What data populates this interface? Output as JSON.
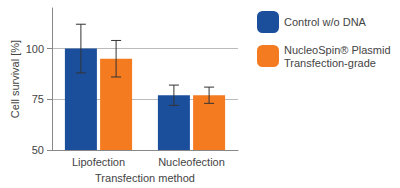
{
  "chart_data": {
    "type": "bar",
    "x_label": "Transfection method",
    "y_label": "Cell survival [%]",
    "categories": [
      "Lipofection",
      "Nucleofection"
    ],
    "series": [
      {
        "name": "Control w/o DNA",
        "color": "#1b4f9c",
        "values": [
          100,
          77
        ],
        "errors": [
          12,
          5
        ]
      },
      {
        "name": "NucleoSpin® Plasmid Transfection-grade",
        "color": "#f47b20",
        "values": [
          95,
          77
        ],
        "errors": [
          9,
          4
        ]
      }
    ],
    "ylim": [
      50,
      120
    ],
    "yticks": [
      50,
      75,
      100
    ],
    "grid": true,
    "legend": "right"
  }
}
